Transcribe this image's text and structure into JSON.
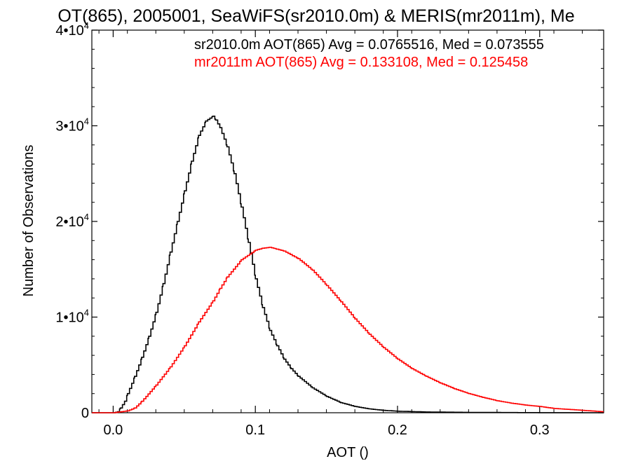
{
  "chart_data": {
    "type": "line",
    "title": "OT(865), 2005001, SeaWiFS(sr2010.0m) & MERIS(mr2011m), Me",
    "xlabel": "AOT ()",
    "ylabel": "Number of Observations",
    "xlim": [
      -0.015,
      0.345
    ],
    "ylim": [
      0,
      40000
    ],
    "xticks": [
      {
        "value": 0.0,
        "label": "0.0"
      },
      {
        "value": 0.1,
        "label": "0.1"
      },
      {
        "value": 0.2,
        "label": "0.2"
      },
      {
        "value": 0.3,
        "label": "0.3"
      }
    ],
    "yticks": [
      {
        "value": 0,
        "base": "0",
        "exp": ""
      },
      {
        "value": 10000,
        "base": "1•10",
        "exp": "4"
      },
      {
        "value": 20000,
        "base": "2•10",
        "exp": "4"
      },
      {
        "value": 30000,
        "base": "3•10",
        "exp": "4"
      },
      {
        "value": 40000,
        "base": "4•10",
        "exp": "4"
      }
    ],
    "annotations": [
      {
        "text": "sr2010.0m AOT(865) Avg = 0.0765516, Med = 0.073555",
        "color": "#000000"
      },
      {
        "text": "mr2011m AOT(865) Avg = 0.133108, Med = 0.125458",
        "color": "#ff0000"
      }
    ],
    "series": [
      {
        "color": "#000000",
        "x": [
          -0.015,
          0.0,
          0.003,
          0.005,
          0.008,
          0.01,
          0.015,
          0.02,
          0.025,
          0.03,
          0.035,
          0.04,
          0.045,
          0.05,
          0.055,
          0.06,
          0.065,
          0.07,
          0.072,
          0.075,
          0.08,
          0.085,
          0.09,
          0.095,
          0.1,
          0.105,
          0.11,
          0.115,
          0.12,
          0.125,
          0.13,
          0.14,
          0.15,
          0.16,
          0.17,
          0.18,
          0.19,
          0.2,
          0.22,
          0.25,
          0.28,
          0.3,
          0.345
        ],
        "y": [
          0,
          0,
          100,
          500,
          1200,
          2000,
          3800,
          5800,
          8000,
          10500,
          13500,
          16800,
          20000,
          23200,
          26300,
          29000,
          30500,
          31000,
          30600,
          29800,
          27800,
          25000,
          21500,
          17800,
          14000,
          11000,
          8600,
          7000,
          5600,
          4600,
          3800,
          2600,
          1700,
          1050,
          650,
          400,
          250,
          160,
          80,
          40,
          20,
          10,
          0
        ]
      },
      {
        "color": "#ff0000",
        "x": [
          -0.015,
          0.0,
          0.01,
          0.015,
          0.02,
          0.03,
          0.04,
          0.05,
          0.06,
          0.07,
          0.075,
          0.08,
          0.09,
          0.1,
          0.105,
          0.11,
          0.115,
          0.12,
          0.13,
          0.14,
          0.15,
          0.16,
          0.17,
          0.18,
          0.19,
          0.2,
          0.21,
          0.22,
          0.23,
          0.24,
          0.25,
          0.26,
          0.27,
          0.28,
          0.29,
          0.3,
          0.31,
          0.32,
          0.33,
          0.34,
          0.345
        ],
        "y": [
          0,
          0,
          200,
          500,
          1200,
          2900,
          4800,
          7000,
          9500,
          11700,
          13000,
          14200,
          16000,
          17000,
          17200,
          17300,
          17100,
          16900,
          16100,
          14900,
          13300,
          11600,
          9800,
          8200,
          6800,
          5600,
          4600,
          3800,
          3100,
          2500,
          2000,
          1600,
          1250,
          1000,
          800,
          650,
          450,
          350,
          250,
          150,
          100
        ]
      }
    ],
    "grid": false,
    "legend": "none"
  }
}
